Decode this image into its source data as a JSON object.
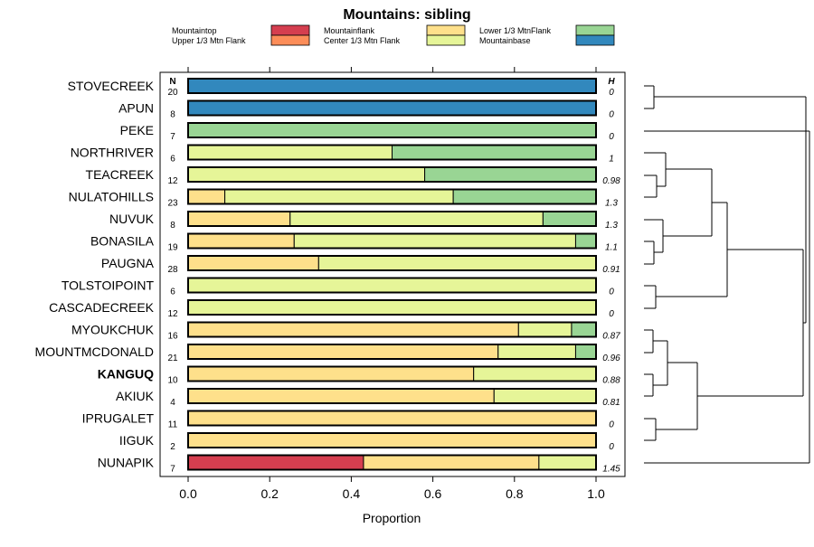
{
  "chart_data": {
    "type": "bar",
    "stacked": true,
    "orientation": "horizontal",
    "title": "Mountains: sibling",
    "xlabel": "Proportion",
    "xlim": [
      0,
      1
    ],
    "xticks": [
      "0.0",
      "0.2",
      "0.4",
      "0.6",
      "0.8",
      "1.0"
    ],
    "n_header": "N",
    "h_header": "H",
    "highlighted_category": "KANGUQ",
    "legend": [
      {
        "name": "Mountaintop",
        "color": "#d53e4f"
      },
      {
        "name": "Upper 1/3 Mtn Flank",
        "color": "#fc8d59"
      },
      {
        "name": "Mountainflank",
        "color": "#fee08b"
      },
      {
        "name": "Center 1/3 Mtn Flank",
        "color": "#e6f598"
      },
      {
        "name": "Lower 1/3 MtnFlank",
        "color": "#99d594"
      },
      {
        "name": "Mountainbase",
        "color": "#3288bd"
      }
    ],
    "categories": [
      "STOVECREEK",
      "APUN",
      "PEKE",
      "NORTHRIVER",
      "TEACREEK",
      "NULATOHILLS",
      "NUVUK",
      "BONASILA",
      "PAUGNA",
      "TOLSTOIPOINT",
      "CASCADECREEK",
      "MYOUKCHUK",
      "MOUNTMCDONALD",
      "KANGUQ",
      "AKIUK",
      "IPRUGALET",
      "IIGUK",
      "NUNAPIK"
    ],
    "n": [
      "20",
      "8",
      "7",
      "6",
      "12",
      "23",
      "8",
      "19",
      "28",
      "6",
      "12",
      "16",
      "21",
      "10",
      "4",
      "11",
      "2",
      "7"
    ],
    "h": [
      "0",
      "0",
      "0",
      "1",
      "0.98",
      "1.3",
      "1.3",
      "1.1",
      "0.91",
      "0",
      "0",
      "0.87",
      "0.96",
      "0.88",
      "0.81",
      "0",
      "0",
      "1.45"
    ],
    "series": [
      {
        "name": "Mountaintop",
        "values": [
          0,
          0,
          0,
          0,
          0,
          0,
          0,
          0,
          0,
          0,
          0,
          0,
          0,
          0,
          0,
          0,
          0,
          0.43
        ]
      },
      {
        "name": "Upper 1/3 Mtn Flank",
        "values": [
          0,
          0,
          0,
          0,
          0,
          0,
          0,
          0,
          0,
          0,
          0,
          0,
          0,
          0,
          0,
          0,
          0,
          0
        ]
      },
      {
        "name": "Mountainflank",
        "values": [
          0,
          0,
          0,
          0,
          0,
          0.09,
          0.25,
          0.26,
          0.32,
          0,
          0,
          0.81,
          0.76,
          0.7,
          0.75,
          1,
          1,
          0.43
        ]
      },
      {
        "name": "Center 1/3 Mtn Flank",
        "values": [
          0,
          0,
          0,
          0.5,
          0.58,
          0.56,
          0.62,
          0.69,
          0.68,
          1,
          1,
          0.13,
          0.19,
          0.3,
          0.25,
          0,
          0,
          0.14
        ]
      },
      {
        "name": "Lower 1/3 MtnFlank",
        "values": [
          0,
          0,
          1,
          0.5,
          0.42,
          0.35,
          0.13,
          0.05,
          0,
          0,
          0,
          0.06,
          0.05,
          0,
          0,
          0,
          0,
          0
        ]
      },
      {
        "name": "Mountainbase",
        "values": [
          1,
          1,
          0,
          0,
          0,
          0,
          0,
          0,
          0,
          0,
          0,
          0,
          0,
          0,
          0,
          0,
          0,
          0
        ]
      }
    ]
  }
}
